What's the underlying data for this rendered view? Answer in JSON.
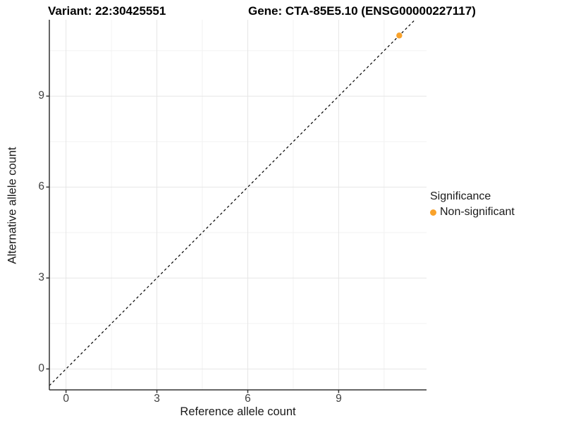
{
  "page": {
    "background": "#FFFFFF"
  },
  "chart_data": {
    "type": "scatter",
    "title_left": "Variant: 22:30425551",
    "title_right": "Gene: CTA-85E5.10 (ENSG00000227117)",
    "xlabel": "Reference allele count",
    "ylabel": "Alternative allele count",
    "xlim": [
      -0.55,
      11.9
    ],
    "ylim": [
      -0.69,
      11.52
    ],
    "x_ticks": [
      0,
      3,
      6,
      9
    ],
    "y_ticks": [
      0,
      3,
      6,
      9
    ],
    "x_minor_ticks": [
      1.5,
      4.5,
      7.5,
      10.5
    ],
    "y_minor_ticks": [
      1.5,
      4.5,
      7.5,
      10.5
    ],
    "grid": "major+minor",
    "identity_line": {
      "slope": 1,
      "intercept": 0,
      "style": "dashed",
      "color": "#000000"
    },
    "series": [
      {
        "name": "Non-significant",
        "color": "#F9A22B",
        "points": [
          {
            "x": 11,
            "y": 11
          }
        ]
      }
    ],
    "legend": {
      "title": "Significance",
      "position": "right",
      "items": [
        {
          "label": "Non-significant",
          "color": "#F9A22B"
        }
      ]
    },
    "colors": {
      "grid_major": "#E6E6E6",
      "grid_minor": "#F2F2F2",
      "axis_line": "#333333",
      "tick_mark": "#333333",
      "tick_label": "#404040",
      "title_text": "#000000"
    }
  }
}
